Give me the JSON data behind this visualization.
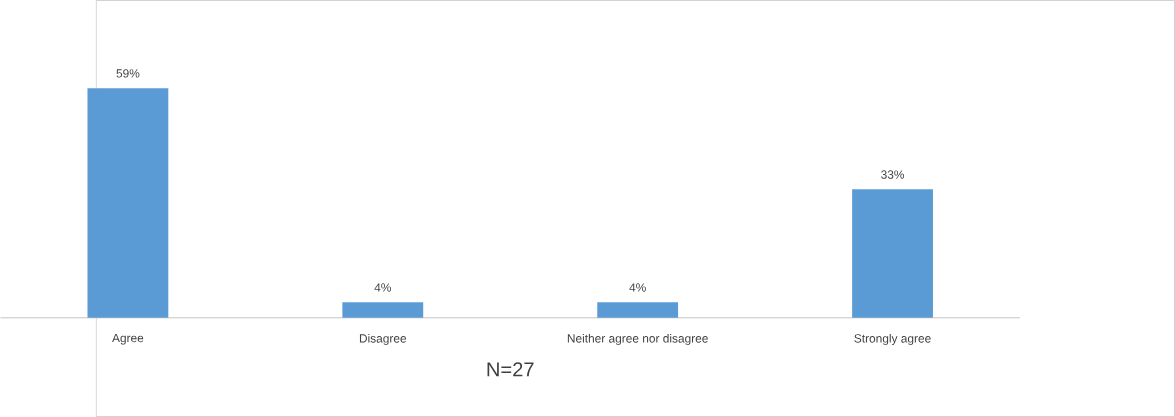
{
  "chart_data": {
    "type": "bar",
    "categories": [
      "Agree",
      "Disagree",
      "Neither agree nor disagree",
      "Strongly agree"
    ],
    "values": [
      59,
      4,
      4,
      33
    ],
    "value_labels": [
      "59%",
      "4%",
      "4%",
      "33%"
    ],
    "color": "#5b9bd5",
    "xlabel": "N=27"
  }
}
